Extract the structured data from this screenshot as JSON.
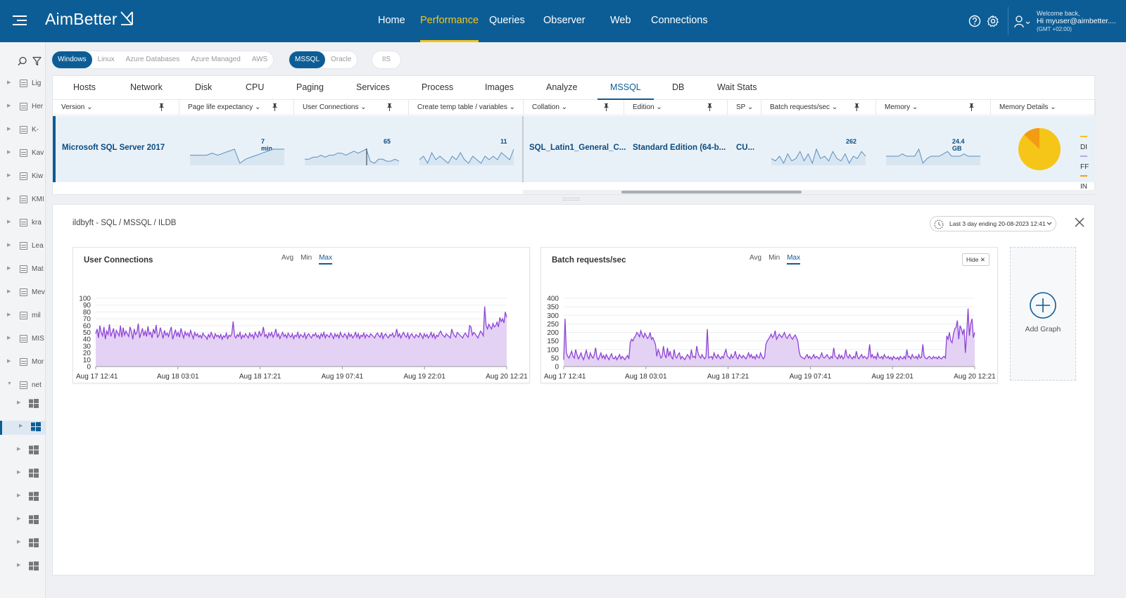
{
  "app": {
    "logo": "AimBetter",
    "nav": [
      "Home",
      "Performance",
      "Queries",
      "Observer",
      "Web",
      "Connections"
    ],
    "active_nav": "Performance",
    "user": {
      "welcome": "Welcome back,",
      "name": "Hi myuser@aimbetter....",
      "tz": "(GMT +02:00)"
    }
  },
  "sidebar": {
    "items": [
      "Lig",
      "Her",
      "K-",
      "Kav",
      "Kiw",
      "KMI",
      "kra",
      "Lea",
      "Mat",
      "Mev",
      "mil",
      "MIS",
      "Mor",
      "net"
    ],
    "child_count": 8
  },
  "filters": {
    "os": [
      "Windows",
      "Linux",
      "Azure Databases",
      "Azure Managed",
      "AWS"
    ],
    "db": [
      "MSSQL",
      "Oracle"
    ],
    "web": [
      "IIS"
    ]
  },
  "tabs": [
    "Hosts",
    "Network",
    "Disk",
    "CPU",
    "Paging",
    "Services",
    "Process",
    "Images",
    "Analyze",
    "MSSQL",
    "DB",
    "Wait Stats"
  ],
  "active_tab": "MSSQL",
  "columns": [
    "Version",
    "Page life expectancy",
    "User Connections",
    "Create temp table / variables",
    "Collation",
    "Edition",
    "SP",
    "Batch requests/sec",
    "Memory",
    "Memory Details"
  ],
  "row": {
    "version": "Microsoft SQL Server 2017",
    "ple": "7 min",
    "user_connections": "65",
    "temp_tables": "11",
    "collation": "SQL_Latin1_General_C...",
    "edition": "Standard Edition (64-b...",
    "sp": "CU...",
    "batch": "262",
    "memory": "24.4 GB",
    "memory_details": {
      "legend": [
        "DI",
        "FF",
        "IN"
      ],
      "legend_colors": [
        "#f5c518",
        "#b4a7e8",
        "#f39c12"
      ],
      "pie": [
        {
          "label": "DI",
          "value": 0.87,
          "color": "#f5c518"
        },
        {
          "label": "IN",
          "value": 0.13,
          "color": "#f39c12"
        }
      ]
    }
  },
  "detail": {
    "breadcrumb": "ildbyft - SQL / MSSQL / ILDB",
    "time_range": "Last 3 day ending  20-08-2023 12:41",
    "add_graph": "Add Graph"
  },
  "graphs": [
    {
      "title": "User Connections",
      "aggs": [
        "Avg",
        "Min",
        "Max"
      ],
      "active_agg": "Max",
      "hide": ""
    },
    {
      "title": "Batch requests/sec",
      "aggs": [
        "Avg",
        "Min",
        "Max"
      ],
      "active_agg": "Max",
      "hide": "Hide"
    }
  ],
  "chart_data": [
    {
      "type": "area",
      "title": "User Connections",
      "x_ticks": [
        "Aug 17 12:41",
        "Aug 18 03:01",
        "Aug 18 17:21",
        "Aug 19 07:41",
        "Aug 19 22:01",
        "Aug 20 12:21"
      ],
      "yticks": [
        0,
        10,
        20,
        30,
        40,
        50,
        60,
        70,
        80,
        90,
        100
      ],
      "ylim": [
        0,
        100
      ],
      "color": "#8e44d6",
      "fill": "#e4d2f5",
      "series": [
        {
          "values": [
            48,
            55,
            42,
            60,
            50,
            45,
            58,
            40,
            52,
            47,
            62,
            44,
            50,
            56,
            41,
            53,
            49,
            45,
            60,
            43,
            57,
            46,
            52,
            48,
            44,
            58,
            51,
            40,
            55,
            47,
            50,
            63,
            42,
            49,
            56,
            45,
            52,
            44,
            59,
            47,
            50,
            42,
            55,
            48,
            61,
            43,
            46,
            57,
            50,
            41,
            53,
            46,
            49,
            44,
            52,
            58,
            40,
            47,
            54,
            45,
            50,
            43,
            56,
            48,
            42,
            51,
            46,
            49,
            44,
            53,
            47,
            41,
            50,
            45,
            48,
            43,
            46,
            42,
            49,
            45,
            44,
            40,
            47,
            43,
            50,
            45,
            41,
            48,
            44,
            46,
            42,
            47,
            40,
            45,
            43,
            49,
            41,
            46,
            44,
            48,
            66,
            45,
            42,
            47,
            44,
            50,
            41,
            46,
            43,
            48,
            45,
            42,
            49,
            44,
            47,
            41,
            50,
            46,
            43,
            52,
            45,
            48,
            58,
            44,
            47,
            42,
            49,
            45,
            50,
            43,
            47,
            55,
            44,
            48,
            41,
            46,
            50,
            44,
            47,
            42,
            49,
            45,
            43,
            48,
            41,
            46,
            44,
            50,
            42,
            47,
            45,
            43,
            49,
            41,
            46,
            48,
            44,
            42,
            47,
            45,
            49,
            43,
            46,
            41,
            48,
            44,
            50,
            42,
            47,
            45,
            43,
            49,
            46,
            41,
            48,
            44,
            47,
            42,
            50,
            45,
            43,
            48,
            46,
            41,
            49,
            44,
            47,
            42,
            45,
            50,
            43,
            48,
            41,
            46,
            44,
            49,
            42,
            47,
            45,
            43,
            48,
            46,
            44,
            42,
            47,
            49,
            45,
            43,
            50,
            41,
            46,
            48,
            44,
            42,
            47,
            45,
            49,
            43,
            46,
            55,
            44,
            48,
            42,
            47,
            50,
            45,
            43,
            49,
            41,
            46,
            48,
            44,
            42,
            47,
            45,
            43,
            49,
            46,
            41,
            48,
            44,
            47,
            42,
            45,
            50,
            43,
            48,
            41,
            46,
            44,
            49,
            52,
            47,
            45,
            43,
            48,
            46,
            44,
            42,
            55,
            49,
            45,
            43,
            50,
            48,
            46,
            44,
            42,
            47,
            49,
            45,
            43,
            60,
            58,
            46,
            50,
            48,
            45,
            42,
            47,
            52,
            49,
            45,
            88,
            60,
            55,
            62,
            58,
            55,
            63,
            58,
            60,
            65,
            58,
            72,
            66,
            70,
            64,
            80,
            72
          ]
        }
      ]
    },
    {
      "type": "area",
      "title": "Batch requests/sec",
      "x_ticks": [
        "Aug 17 12:41",
        "Aug 18 03:01",
        "Aug 18 17:21",
        "Aug 19 07:41",
        "Aug 19 22:01",
        "Aug 20 12:21"
      ],
      "yticks": [
        0,
        50,
        100,
        150,
        200,
        250,
        300,
        350,
        400
      ],
      "ylim": [
        0,
        400
      ],
      "color": "#8e44d6",
      "fill": "#e4d2f5",
      "series": [
        {
          "values": [
            40,
            280,
            80,
            60,
            50,
            70,
            90,
            60,
            50,
            100,
            70,
            45,
            60,
            80,
            55,
            40,
            70,
            95,
            60,
            45,
            80,
            60,
            50,
            70,
            110,
            55,
            40,
            60,
            80,
            50,
            65,
            45,
            70,
            55,
            40,
            60,
            75,
            50,
            45,
            60,
            40,
            55,
            70,
            45,
            60,
            50,
            40,
            55,
            65,
            45,
            140,
            160,
            150,
            170,
            180,
            200,
            190,
            175,
            210,
            185,
            170,
            195,
            180,
            165,
            175,
            200,
            160,
            170,
            150,
            130,
            60,
            100,
            80,
            50,
            60,
            120,
            70,
            50,
            110,
            60,
            90,
            55,
            45,
            100,
            60,
            50,
            70,
            80,
            45,
            60,
            50,
            40,
            55,
            70,
            60,
            45,
            100,
            55,
            60,
            50,
            120,
            80,
            60,
            50,
            70,
            55,
            45,
            60,
            220,
            50,
            55,
            60,
            45,
            80,
            60,
            50,
            70,
            55,
            45,
            60,
            50,
            80,
            100,
            60,
            55,
            45,
            70,
            50,
            60,
            90,
            55,
            45,
            70,
            60,
            50,
            65,
            55,
            45,
            60,
            80,
            55,
            70,
            50,
            60,
            45,
            70,
            55,
            50,
            80,
            60,
            45,
            55,
            130,
            150,
            160,
            175,
            190,
            170,
            180,
            210,
            160,
            175,
            190,
            180,
            170,
            185,
            200,
            175,
            165,
            180,
            190,
            170,
            160,
            175,
            185,
            170,
            150,
            90,
            60,
            55,
            50,
            45,
            60,
            70,
            50,
            60,
            45,
            55,
            70,
            50,
            60,
            55,
            45,
            60,
            80,
            55,
            50,
            60,
            70,
            55,
            45,
            60,
            50,
            110,
            60,
            55,
            45,
            70,
            50,
            65,
            45,
            55,
            100,
            60,
            50,
            70,
            55,
            45,
            60,
            50,
            90,
            55,
            45,
            60,
            70,
            50,
            60,
            55,
            45,
            60,
            130,
            55,
            70,
            50,
            60,
            45,
            80,
            55,
            50,
            60,
            45,
            70,
            55,
            50,
            60,
            45,
            55,
            40,
            60,
            50,
            45,
            55,
            40,
            60,
            50,
            45,
            60,
            45,
            100,
            55,
            60,
            45,
            70,
            55,
            50,
            60,
            45,
            70,
            50,
            55,
            130,
            60,
            50,
            45,
            55,
            60,
            50,
            45,
            60,
            50,
            55,
            45,
            60,
            50,
            45,
            55,
            60,
            50,
            180,
            160,
            200,
            150,
            140,
            190,
            220,
            230,
            270,
            160,
            240,
            220,
            190,
            220,
            80,
            200,
            340,
            180,
            250,
            280,
            170,
            200
          ]
        }
      ]
    }
  ]
}
